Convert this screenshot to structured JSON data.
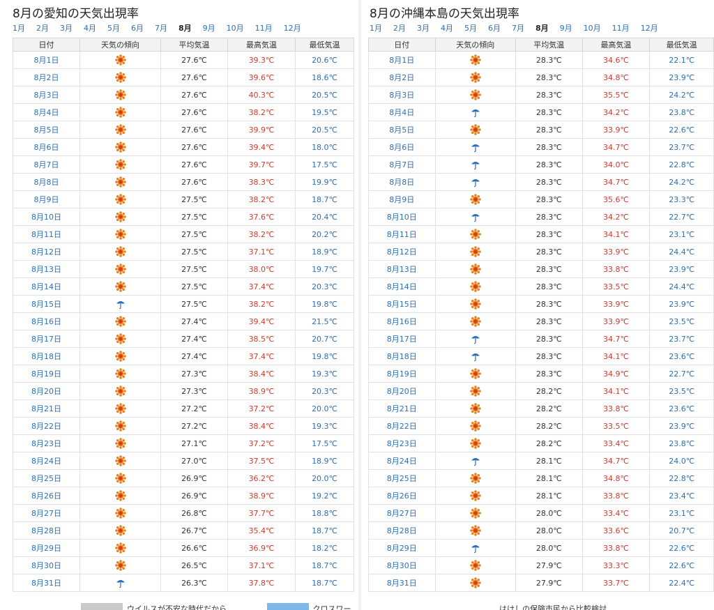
{
  "months": [
    "1月",
    "2月",
    "3月",
    "4月",
    "5月",
    "6月",
    "7月",
    "8月",
    "9月",
    "10月",
    "11月",
    "12月"
  ],
  "active_month": "8月",
  "columns": [
    "日付",
    "天気の傾向",
    "平均気温",
    "最高気温",
    "最低気温"
  ],
  "aichi": {
    "title": "8月の愛知の天気出現率",
    "rows": [
      {
        "date": "8月1日",
        "icon": "sun-icon",
        "avg": "27.6℃",
        "high": "39.3℃",
        "low": "20.6℃"
      },
      {
        "date": "8月2日",
        "icon": "sun-icon",
        "avg": "27.6℃",
        "high": "39.6℃",
        "low": "18.6℃"
      },
      {
        "date": "8月3日",
        "icon": "sun-icon",
        "avg": "27.6℃",
        "high": "40.3℃",
        "low": "20.5℃"
      },
      {
        "date": "8月4日",
        "icon": "sun-icon",
        "avg": "27.6℃",
        "high": "38.2℃",
        "low": "19.5℃"
      },
      {
        "date": "8月5日",
        "icon": "sun-icon",
        "avg": "27.6℃",
        "high": "39.9℃",
        "low": "20.5℃"
      },
      {
        "date": "8月6日",
        "icon": "sun-icon",
        "avg": "27.6℃",
        "high": "39.4℃",
        "low": "18.0℃"
      },
      {
        "date": "8月7日",
        "icon": "sun-icon",
        "avg": "27.6℃",
        "high": "39.7℃",
        "low": "17.5℃"
      },
      {
        "date": "8月8日",
        "icon": "sun-icon",
        "avg": "27.6℃",
        "high": "38.3℃",
        "low": "19.9℃"
      },
      {
        "date": "8月9日",
        "icon": "sun-icon",
        "avg": "27.5℃",
        "high": "38.2℃",
        "low": "18.7℃"
      },
      {
        "date": "8月10日",
        "icon": "sun-icon",
        "avg": "27.5℃",
        "high": "37.6℃",
        "low": "20.4℃"
      },
      {
        "date": "8月11日",
        "icon": "sun-icon",
        "avg": "27.5℃",
        "high": "38.2℃",
        "low": "20.2℃"
      },
      {
        "date": "8月12日",
        "icon": "sun-icon",
        "avg": "27.5℃",
        "high": "37.1℃",
        "low": "18.9℃"
      },
      {
        "date": "8月13日",
        "icon": "sun-icon",
        "avg": "27.5℃",
        "high": "38.0℃",
        "low": "19.7℃"
      },
      {
        "date": "8月14日",
        "icon": "sun-icon",
        "avg": "27.5℃",
        "high": "37.4℃",
        "low": "20.3℃"
      },
      {
        "date": "8月15日",
        "icon": "umbrella-icon",
        "avg": "27.5℃",
        "high": "38.2℃",
        "low": "19.8℃"
      },
      {
        "date": "8月16日",
        "icon": "sun-icon",
        "avg": "27.4℃",
        "high": "39.4℃",
        "low": "21.5℃"
      },
      {
        "date": "8月17日",
        "icon": "sun-icon",
        "avg": "27.4℃",
        "high": "38.5℃",
        "low": "20.7℃"
      },
      {
        "date": "8月18日",
        "icon": "sun-icon",
        "avg": "27.4℃",
        "high": "37.4℃",
        "low": "19.8℃"
      },
      {
        "date": "8月19日",
        "icon": "sun-icon",
        "avg": "27.3℃",
        "high": "38.4℃",
        "low": "19.3℃"
      },
      {
        "date": "8月20日",
        "icon": "sun-icon",
        "avg": "27.3℃",
        "high": "38.9℃",
        "low": "20.3℃"
      },
      {
        "date": "8月21日",
        "icon": "sun-icon",
        "avg": "27.2℃",
        "high": "37.2℃",
        "low": "20.0℃"
      },
      {
        "date": "8月22日",
        "icon": "sun-icon",
        "avg": "27.2℃",
        "high": "38.4℃",
        "low": "19.3℃"
      },
      {
        "date": "8月23日",
        "icon": "sun-icon",
        "avg": "27.1℃",
        "high": "37.2℃",
        "low": "17.5℃"
      },
      {
        "date": "8月24日",
        "icon": "sun-icon",
        "avg": "27.0℃",
        "high": "37.5℃",
        "low": "18.9℃"
      },
      {
        "date": "8月25日",
        "icon": "sun-icon",
        "avg": "26.9℃",
        "high": "36.2℃",
        "low": "20.0℃"
      },
      {
        "date": "8月26日",
        "icon": "sun-icon",
        "avg": "26.9℃",
        "high": "38.9℃",
        "low": "19.2℃"
      },
      {
        "date": "8月27日",
        "icon": "sun-icon",
        "avg": "26.8℃",
        "high": "37.7℃",
        "low": "18.8℃"
      },
      {
        "date": "8月28日",
        "icon": "sun-icon",
        "avg": "26.7℃",
        "high": "35.4℃",
        "low": "18.7℃"
      },
      {
        "date": "8月29日",
        "icon": "sun-icon",
        "avg": "26.6℃",
        "high": "36.9℃",
        "low": "18.2℃"
      },
      {
        "date": "8月30日",
        "icon": "sun-icon",
        "avg": "26.5℃",
        "high": "37.1℃",
        "low": "18.7℃"
      },
      {
        "date": "8月31日",
        "icon": "umbrella-icon",
        "avg": "26.3℃",
        "high": "37.8℃",
        "low": "18.7℃"
      }
    ]
  },
  "okinawa": {
    "title": "8月の沖縄本島の天気出現率",
    "rows": [
      {
        "date": "8月1日",
        "icon": "sun-icon",
        "avg": "28.3℃",
        "high": "34.6℃",
        "low": "22.1℃"
      },
      {
        "date": "8月2日",
        "icon": "sun-icon",
        "avg": "28.3℃",
        "high": "34.8℃",
        "low": "23.9℃"
      },
      {
        "date": "8月3日",
        "icon": "sun-icon",
        "avg": "28.3℃",
        "high": "35.5℃",
        "low": "24.2℃"
      },
      {
        "date": "8月4日",
        "icon": "umbrella-icon",
        "avg": "28.3℃",
        "high": "34.2℃",
        "low": "23.8℃"
      },
      {
        "date": "8月5日",
        "icon": "sun-icon",
        "avg": "28.3℃",
        "high": "33.9℃",
        "low": "22.6℃"
      },
      {
        "date": "8月6日",
        "icon": "umbrella-icon",
        "avg": "28.3℃",
        "high": "34.7℃",
        "low": "23.7℃"
      },
      {
        "date": "8月7日",
        "icon": "umbrella-icon",
        "avg": "28.3℃",
        "high": "34.0℃",
        "low": "22.8℃"
      },
      {
        "date": "8月8日",
        "icon": "umbrella-icon",
        "avg": "28.3℃",
        "high": "34.7℃",
        "low": "24.2℃"
      },
      {
        "date": "8月9日",
        "icon": "sun-icon",
        "avg": "28.3℃",
        "high": "35.6℃",
        "low": "23.3℃"
      },
      {
        "date": "8月10日",
        "icon": "umbrella-icon",
        "avg": "28.3℃",
        "high": "34.2℃",
        "low": "22.7℃"
      },
      {
        "date": "8月11日",
        "icon": "sun-icon",
        "avg": "28.3℃",
        "high": "34.1℃",
        "low": "23.1℃"
      },
      {
        "date": "8月12日",
        "icon": "sun-icon",
        "avg": "28.3℃",
        "high": "33.9℃",
        "low": "24.4℃"
      },
      {
        "date": "8月13日",
        "icon": "sun-icon",
        "avg": "28.3℃",
        "high": "33.8℃",
        "low": "23.9℃"
      },
      {
        "date": "8月14日",
        "icon": "sun-icon",
        "avg": "28.3℃",
        "high": "33.5℃",
        "low": "24.4℃"
      },
      {
        "date": "8月15日",
        "icon": "sun-icon",
        "avg": "28.3℃",
        "high": "33.9℃",
        "low": "23.9℃"
      },
      {
        "date": "8月16日",
        "icon": "sun-icon",
        "avg": "28.3℃",
        "high": "33.9℃",
        "low": "23.5℃"
      },
      {
        "date": "8月17日",
        "icon": "umbrella-icon",
        "avg": "28.3℃",
        "high": "34.7℃",
        "low": "23.7℃"
      },
      {
        "date": "8月18日",
        "icon": "umbrella-icon",
        "avg": "28.3℃",
        "high": "34.1℃",
        "low": "23.6℃"
      },
      {
        "date": "8月19日",
        "icon": "sun-icon",
        "avg": "28.3℃",
        "high": "34.9℃",
        "low": "22.7℃"
      },
      {
        "date": "8月20日",
        "icon": "sun-icon",
        "avg": "28.2℃",
        "high": "34.1℃",
        "low": "23.5℃"
      },
      {
        "date": "8月21日",
        "icon": "sun-icon",
        "avg": "28.2℃",
        "high": "33.8℃",
        "low": "23.6℃"
      },
      {
        "date": "8月22日",
        "icon": "sun-icon",
        "avg": "28.2℃",
        "high": "33.5℃",
        "low": "23.9℃"
      },
      {
        "date": "8月23日",
        "icon": "sun-icon",
        "avg": "28.2℃",
        "high": "33.4℃",
        "low": "23.8℃"
      },
      {
        "date": "8月24日",
        "icon": "umbrella-icon",
        "avg": "28.1℃",
        "high": "34.7℃",
        "low": "24.0℃"
      },
      {
        "date": "8月25日",
        "icon": "sun-icon",
        "avg": "28.1℃",
        "high": "34.8℃",
        "low": "22.8℃"
      },
      {
        "date": "8月26日",
        "icon": "sun-icon",
        "avg": "28.1℃",
        "high": "33.8℃",
        "low": "23.4℃"
      },
      {
        "date": "8月27日",
        "icon": "sun-icon",
        "avg": "28.0℃",
        "high": "33.4℃",
        "low": "23.1℃"
      },
      {
        "date": "8月28日",
        "icon": "sun-icon",
        "avg": "28.0℃",
        "high": "33.6℃",
        "low": "20.7℃"
      },
      {
        "date": "8月29日",
        "icon": "umbrella-icon",
        "avg": "28.0℃",
        "high": "33.8℃",
        "low": "22.6℃"
      },
      {
        "date": "8月30日",
        "icon": "sun-icon",
        "avg": "27.9℃",
        "high": "33.3℃",
        "low": "22.6℃"
      },
      {
        "date": "8月31日",
        "icon": "sun-icon",
        "avg": "27.9℃",
        "high": "33.7℃",
        "low": "22.4℃"
      }
    ]
  },
  "colors": {
    "sun": "#e8821e",
    "sun_core": "#d63a1a",
    "umbrella": "#2b6fb6",
    "high": "#d0392b",
    "low": "#2b6fb6",
    "link": "#2b6fb6"
  },
  "footer": {
    "left_text": "ウイルスが不安な時代だから",
    "middle_text": "クロスワー",
    "right_text": "はけしの保険市民から比較検討"
  }
}
